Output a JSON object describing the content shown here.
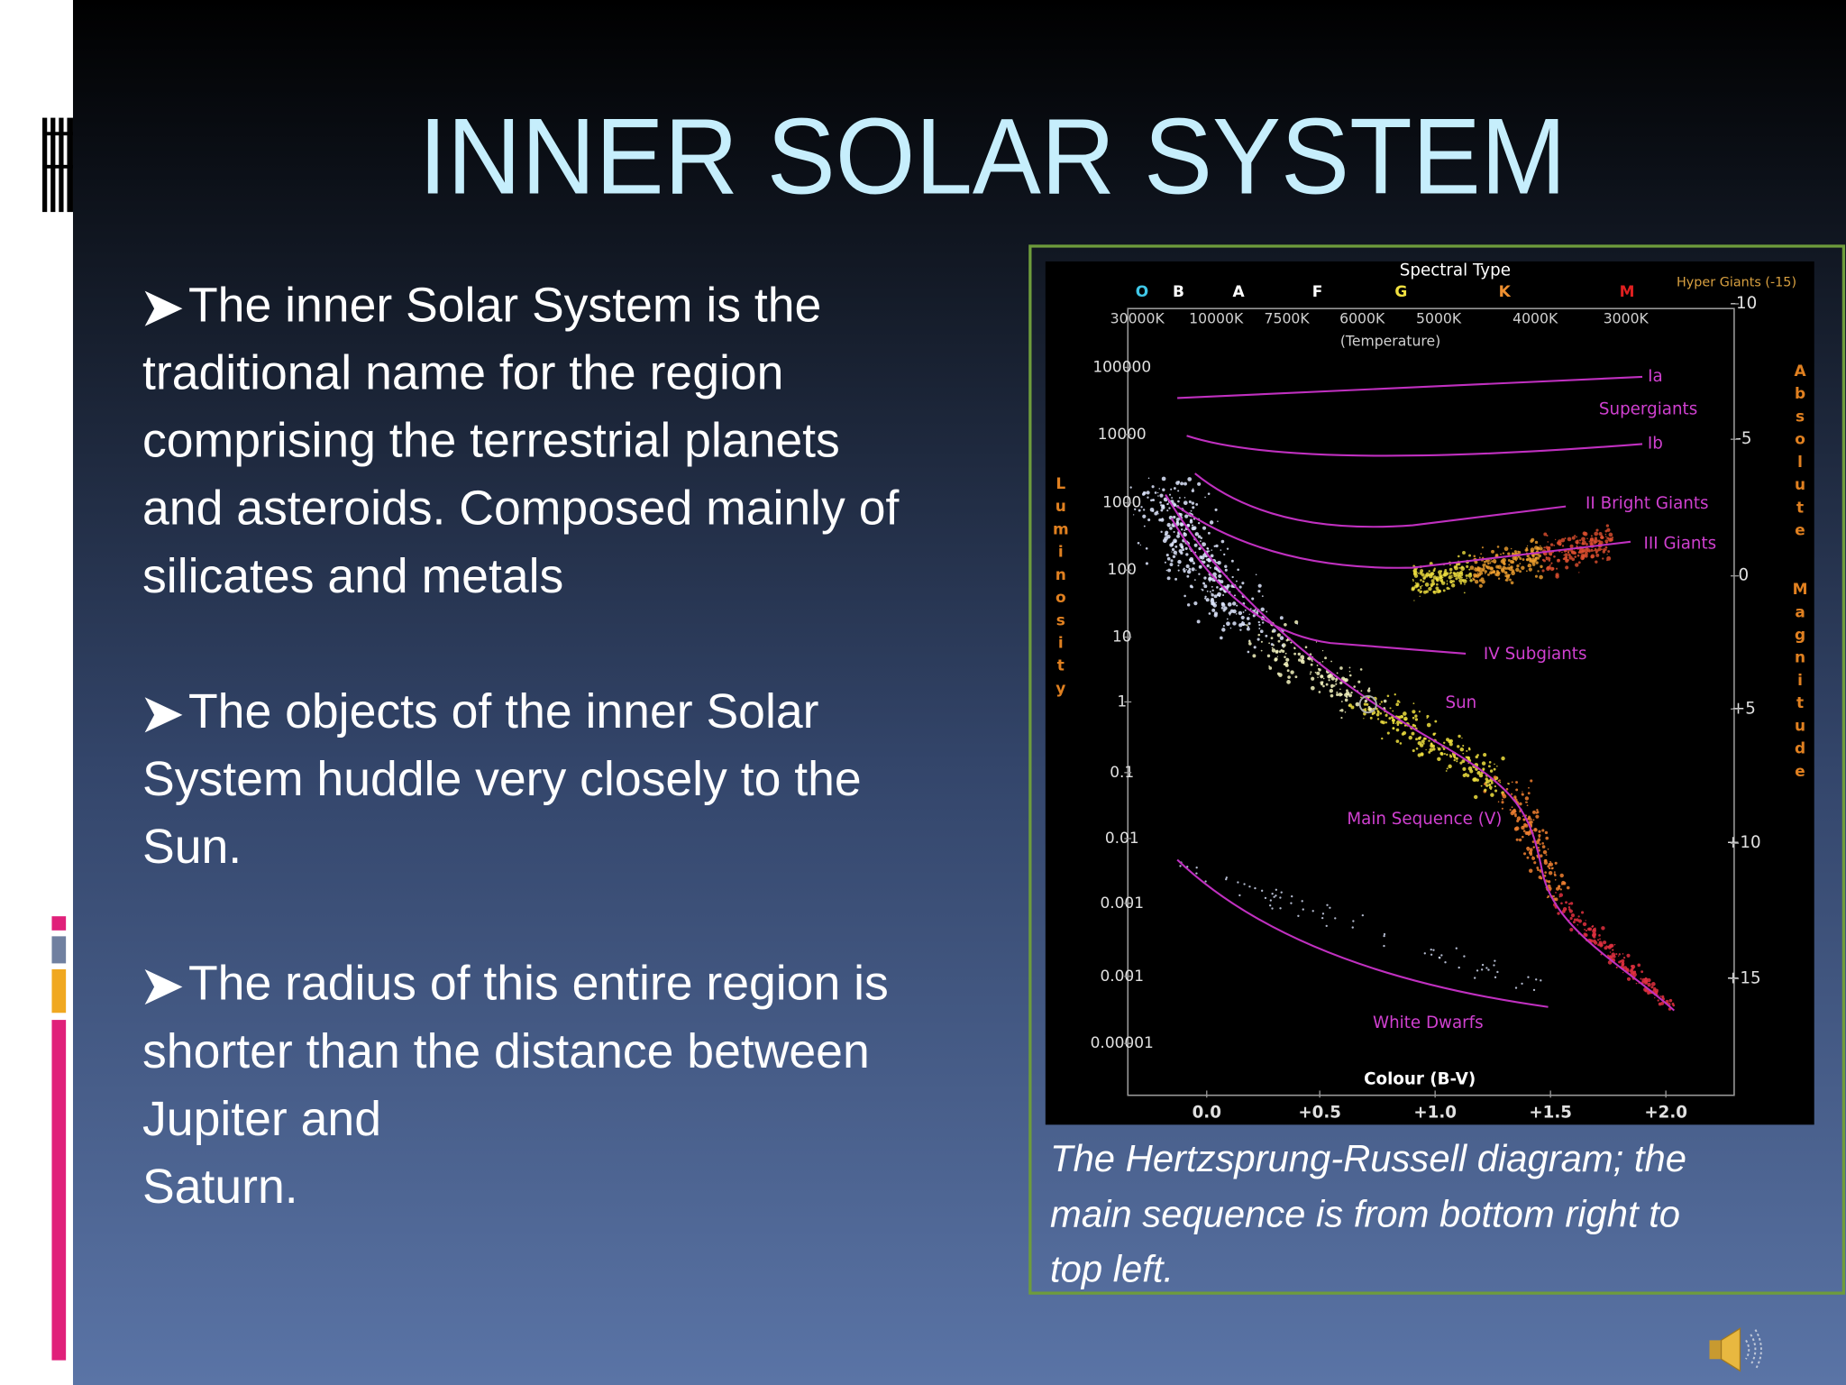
{
  "slide": {
    "title": "INNER SOLAR SYSTEM",
    "bullets": [
      [
        "The inner Solar System is the",
        "traditional name for the region",
        "comprising the terrestrial planets",
        "and asteroids. Composed mainly of",
        "silicates and metals"
      ],
      [
        "The objects of the inner Solar",
        "System huddle very closely to the",
        "Sun."
      ],
      [
        "The radius of this entire region is",
        "shorter than the distance between",
        "Jupiter and",
        "Saturn."
      ]
    ]
  },
  "figure": {
    "diagram": {
      "title": "Spectral Type",
      "spectral_classes": [
        "O",
        "B",
        "A",
        "F",
        "G",
        "K",
        "M"
      ],
      "temperatures": [
        "30000K",
        "10000K",
        "7500K",
        "6000K",
        "5000K",
        "4000K",
        "3000K"
      ],
      "temperature_label": "(Temperature)",
      "hyper_giants": "Hyper Giants (-15)",
      "luminosity_label": "Luminosity",
      "luminosity_ticks": [
        "100000",
        "10000",
        "1000",
        "100",
        "10",
        "1",
        "0.1",
        "0.01",
        "0.001",
        "0.001",
        "0.00001"
      ],
      "magnitude_label": [
        "Absolute",
        "Magnitude"
      ],
      "magnitude_ticks": [
        "-10",
        "-5",
        "0",
        "+5",
        "+10",
        "+15"
      ],
      "regions": [
        "Ia",
        "Supergiants",
        "Ib",
        "II Bright Giants",
        "III Giants",
        "IV Subgiants",
        "Sun",
        "Main Sequence (V)",
        "White Dwarfs"
      ],
      "x_label": "Colour (B-V)",
      "x_ticks": [
        "0.0",
        "+0.5",
        "+1.0",
        "+1.5",
        "+2.0"
      ]
    },
    "caption": [
      "The Hertzsprung-Russell diagram; the",
      "main sequence is from bottom right to",
      "top left."
    ]
  }
}
